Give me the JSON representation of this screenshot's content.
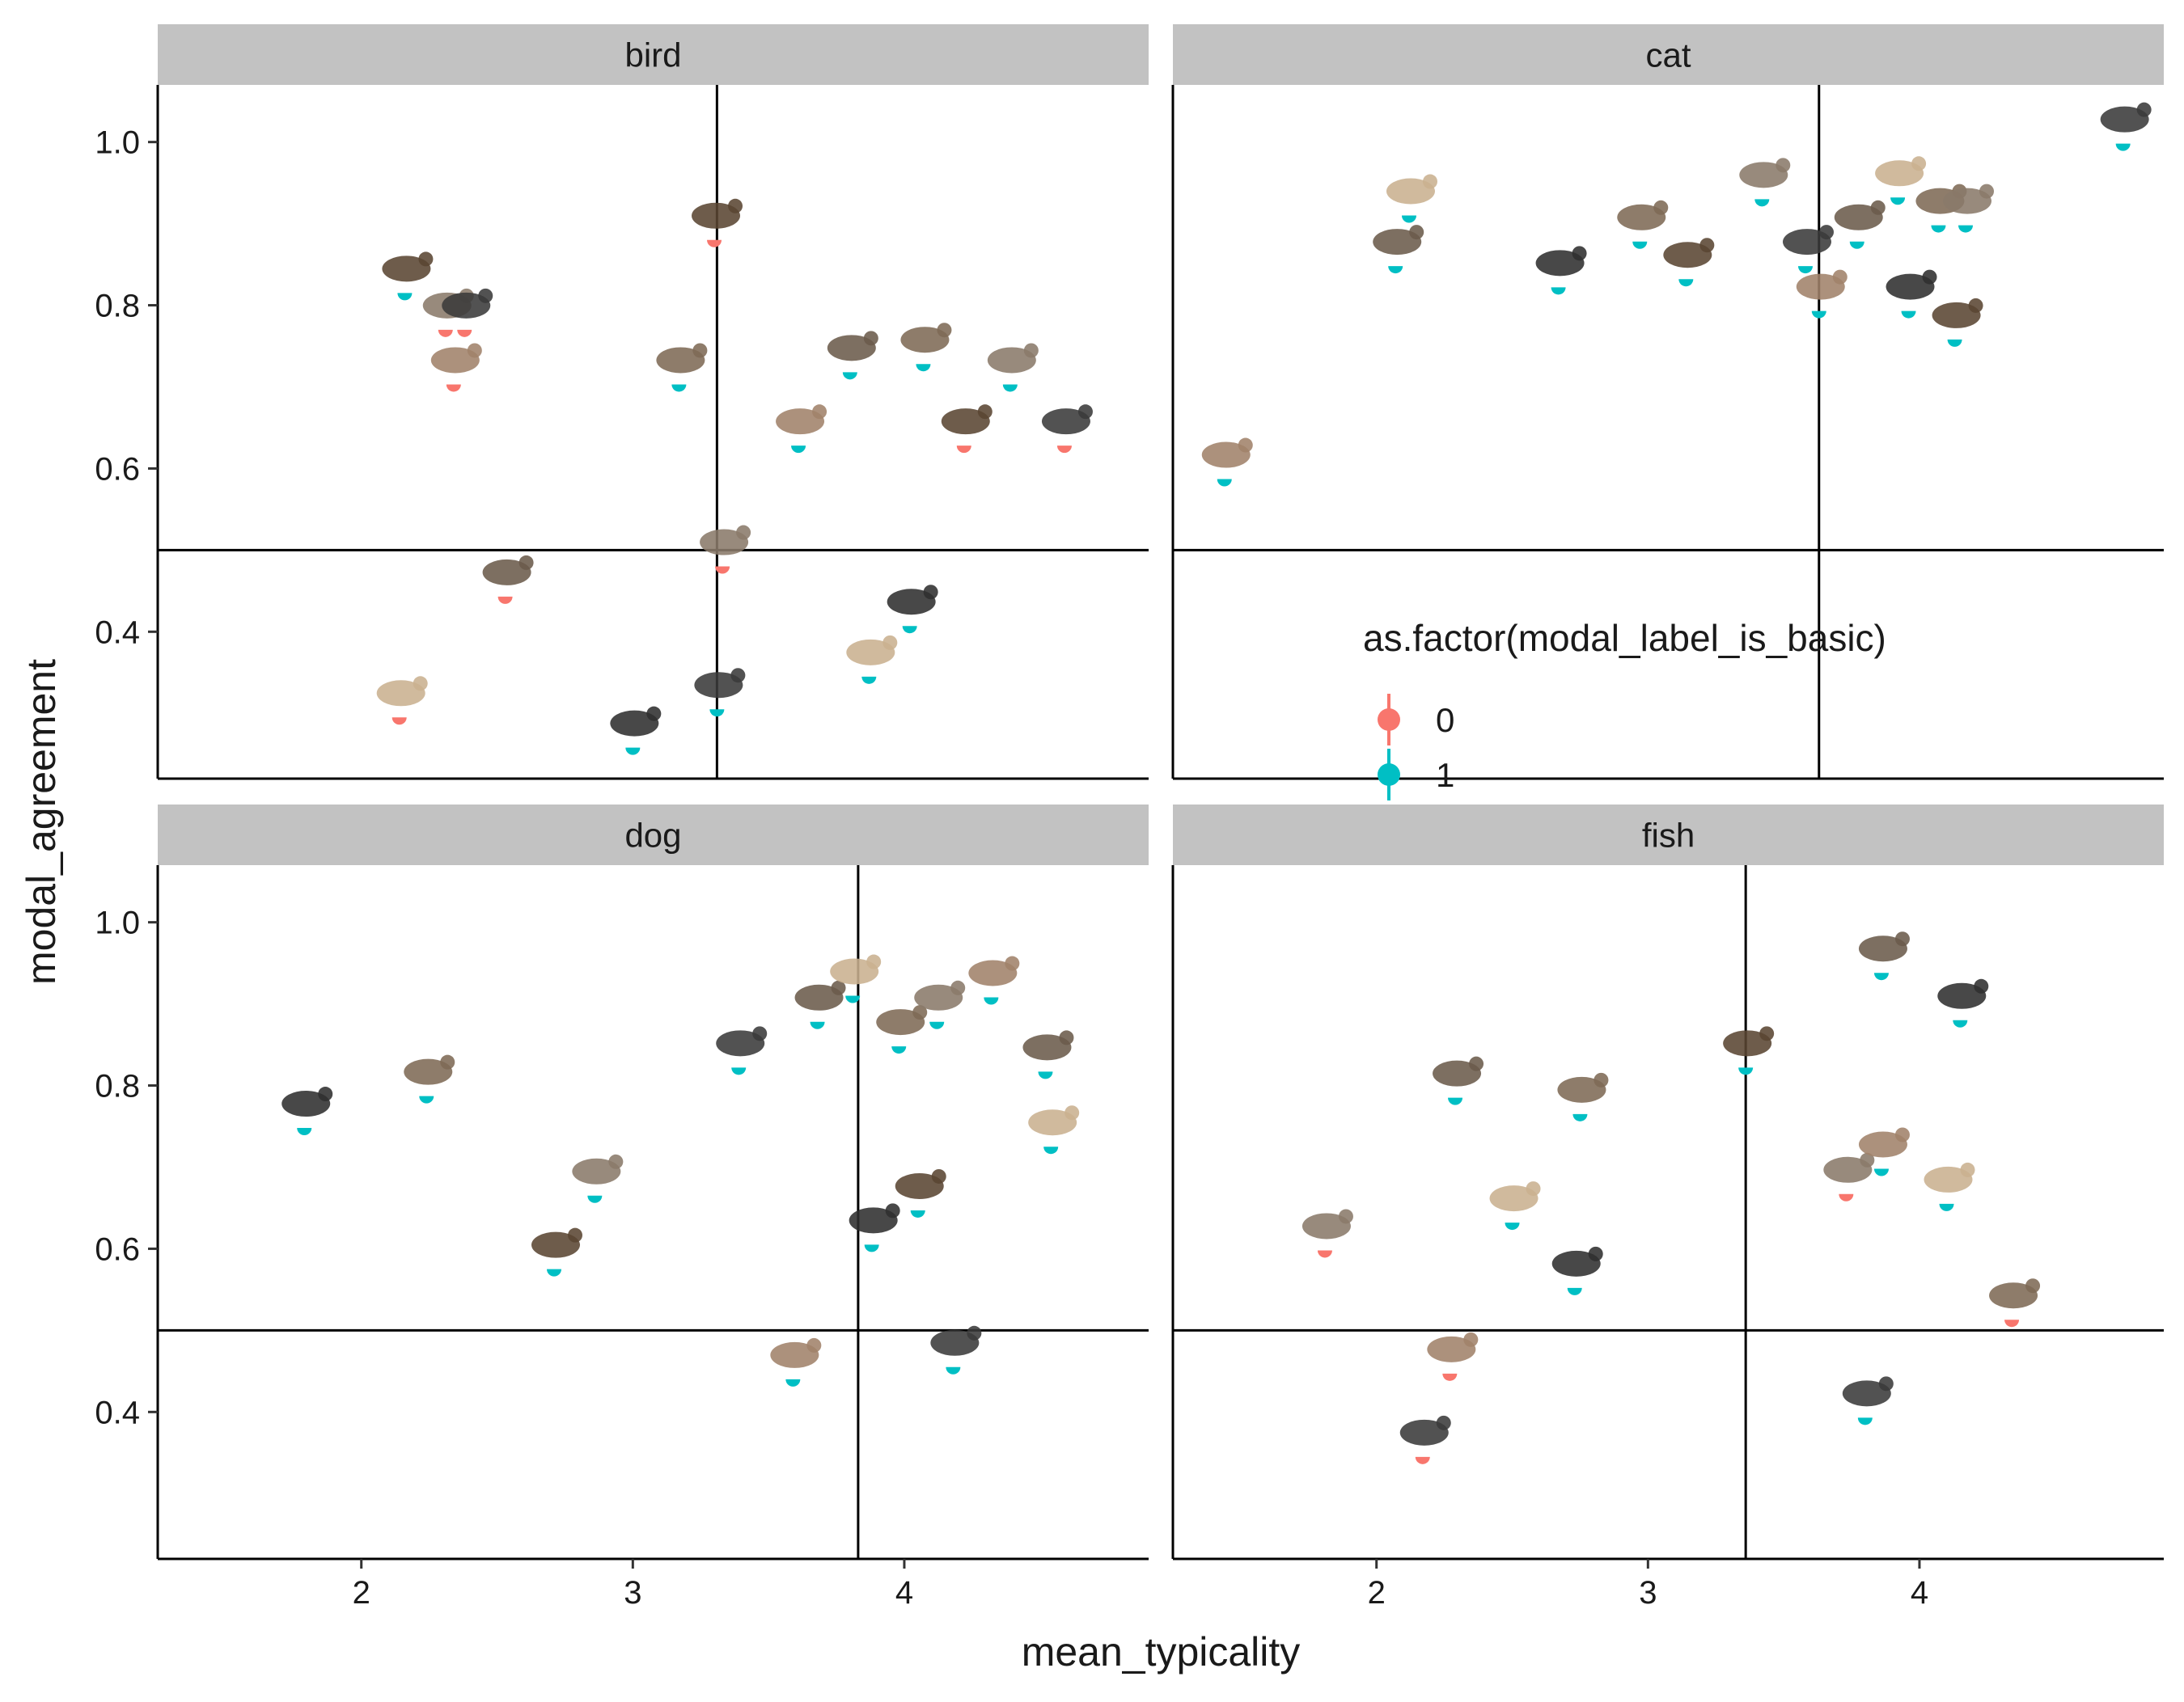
{
  "chart_data": {
    "type": "scatter",
    "facet_by": "category",
    "xlabel": "mean_typicality",
    "ylabel": "modal_agreement",
    "xlim": [
      1.25,
      4.9
    ],
    "ylim": [
      0.22,
      1.07
    ],
    "x_ticks": [
      "2",
      "3",
      "4"
    ],
    "y_ticks": [
      "0.4",
      "0.6",
      "0.8",
      "1.0"
    ],
    "legend": {
      "title": "as.factor(modal_label_is_basic)",
      "placement": "inside top-right panel (cat), lower half",
      "levels": [
        {
          "label": "0",
          "color": "#F8766D"
        },
        {
          "label": "1",
          "color": "#00BFC4"
        }
      ]
    },
    "marker_note": "each point is shown with a small animal photo thumbnail above a half-dot marker",
    "facets": [
      {
        "name": "bird",
        "vline": 3.31,
        "hline": 0.5,
        "points": [
          {
            "x": 2.16,
            "y": 0.815,
            "g": 1
          },
          {
            "x": 2.31,
            "y": 0.77,
            "g": 0
          },
          {
            "x": 2.38,
            "y": 0.77,
            "g": 0
          },
          {
            "x": 2.34,
            "y": 0.703,
            "g": 0
          },
          {
            "x": 2.53,
            "y": 0.443,
            "g": 0
          },
          {
            "x": 2.14,
            "y": 0.295,
            "g": 0
          },
          {
            "x": 3.0,
            "y": 0.258,
            "g": 1
          },
          {
            "x": 3.17,
            "y": 0.703,
            "g": 1
          },
          {
            "x": 3.3,
            "y": 0.88,
            "g": 0
          },
          {
            "x": 3.33,
            "y": 0.48,
            "g": 0
          },
          {
            "x": 3.31,
            "y": 0.305,
            "g": 1
          },
          {
            "x": 3.61,
            "y": 0.628,
            "g": 1
          },
          {
            "x": 3.8,
            "y": 0.718,
            "g": 1
          },
          {
            "x": 3.87,
            "y": 0.345,
            "g": 1
          },
          {
            "x": 4.02,
            "y": 0.407,
            "g": 1
          },
          {
            "x": 4.07,
            "y": 0.728,
            "g": 1
          },
          {
            "x": 4.22,
            "y": 0.628,
            "g": 0
          },
          {
            "x": 4.39,
            "y": 0.703,
            "g": 1
          },
          {
            "x": 4.59,
            "y": 0.628,
            "g": 0
          }
        ]
      },
      {
        "name": "cat",
        "vline": 3.63,
        "hline": 0.5,
        "points": [
          {
            "x": 1.44,
            "y": 0.587,
            "g": 1
          },
          {
            "x": 2.07,
            "y": 0.848,
            "g": 1
          },
          {
            "x": 2.12,
            "y": 0.91,
            "g": 1
          },
          {
            "x": 2.67,
            "y": 0.822,
            "g": 1
          },
          {
            "x": 2.97,
            "y": 0.878,
            "g": 1
          },
          {
            "x": 3.14,
            "y": 0.832,
            "g": 1
          },
          {
            "x": 3.42,
            "y": 0.93,
            "g": 1
          },
          {
            "x": 3.58,
            "y": 0.848,
            "g": 1
          },
          {
            "x": 3.63,
            "y": 0.793,
            "g": 1
          },
          {
            "x": 3.77,
            "y": 0.878,
            "g": 1
          },
          {
            "x": 3.92,
            "y": 0.932,
            "g": 1
          },
          {
            "x": 3.96,
            "y": 0.793,
            "g": 1
          },
          {
            "x": 4.07,
            "y": 0.898,
            "g": 1
          },
          {
            "x": 4.13,
            "y": 0.758,
            "g": 1
          },
          {
            "x": 4.17,
            "y": 0.898,
            "g": 1
          },
          {
            "x": 4.75,
            "y": 0.998,
            "g": 1
          }
        ]
      },
      {
        "name": "dog",
        "vline": 3.83,
        "hline": 0.5,
        "points": [
          {
            "x": 1.79,
            "y": 0.748,
            "g": 1
          },
          {
            "x": 2.24,
            "y": 0.787,
            "g": 1
          },
          {
            "x": 2.71,
            "y": 0.575,
            "g": 1
          },
          {
            "x": 2.86,
            "y": 0.665,
            "g": 1
          },
          {
            "x": 3.39,
            "y": 0.822,
            "g": 1
          },
          {
            "x": 3.59,
            "y": 0.44,
            "g": 1
          },
          {
            "x": 3.68,
            "y": 0.878,
            "g": 1
          },
          {
            "x": 3.81,
            "y": 0.91,
            "g": 1
          },
          {
            "x": 3.88,
            "y": 0.605,
            "g": 1
          },
          {
            "x": 3.98,
            "y": 0.848,
            "g": 1
          },
          {
            "x": 4.05,
            "y": 0.647,
            "g": 1
          },
          {
            "x": 4.12,
            "y": 0.878,
            "g": 1
          },
          {
            "x": 4.18,
            "y": 0.455,
            "g": 1
          },
          {
            "x": 4.32,
            "y": 0.908,
            "g": 1
          },
          {
            "x": 4.52,
            "y": 0.817,
            "g": 1
          },
          {
            "x": 4.54,
            "y": 0.725,
            "g": 1
          }
        ]
      },
      {
        "name": "fish",
        "vline": 3.36,
        "hline": 0.5,
        "points": [
          {
            "x": 1.81,
            "y": 0.598,
            "g": 0
          },
          {
            "x": 2.17,
            "y": 0.345,
            "g": 0
          },
          {
            "x": 2.27,
            "y": 0.447,
            "g": 0
          },
          {
            "x": 2.29,
            "y": 0.785,
            "g": 1
          },
          {
            "x": 2.5,
            "y": 0.632,
            "g": 1
          },
          {
            "x": 2.73,
            "y": 0.552,
            "g": 1
          },
          {
            "x": 2.75,
            "y": 0.765,
            "g": 1
          },
          {
            "x": 3.36,
            "y": 0.822,
            "g": 1
          },
          {
            "x": 3.73,
            "y": 0.667,
            "g": 0
          },
          {
            "x": 3.8,
            "y": 0.393,
            "g": 1
          },
          {
            "x": 3.86,
            "y": 0.698,
            "g": 1
          },
          {
            "x": 3.86,
            "y": 0.938,
            "g": 1
          },
          {
            "x": 4.1,
            "y": 0.655,
            "g": 1
          },
          {
            "x": 4.15,
            "y": 0.88,
            "g": 1
          },
          {
            "x": 4.34,
            "y": 0.513,
            "g": 0
          }
        ]
      }
    ]
  }
}
